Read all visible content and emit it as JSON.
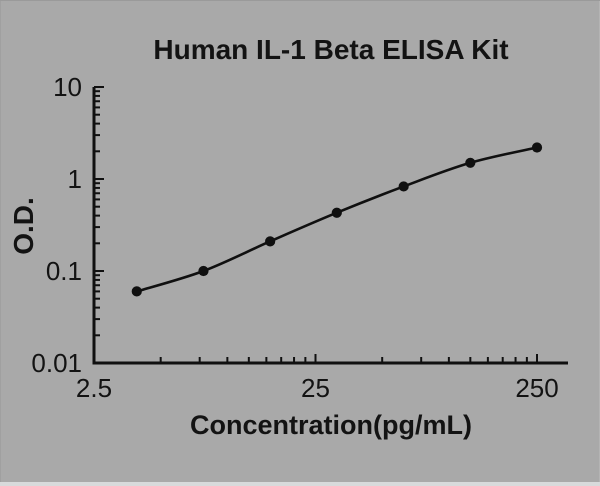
{
  "window": {
    "background_color": "#a9a9a9",
    "foreground_color": "#131313",
    "bottom_strip_color": "#d8dadb"
  },
  "chart_data": {
    "type": "scatter",
    "title": "Human IL-1 Beta ELISA Kit",
    "xlabel": "Concentration(pg/mL)",
    "ylabel": "O.D.",
    "x": [
      3.9,
      7.8,
      15.6,
      31.2,
      62.5,
      125,
      250
    ],
    "y": [
      0.06,
      0.1,
      0.21,
      0.43,
      0.83,
      1.5,
      2.2
    ],
    "xscale": "log",
    "yscale": "log",
    "xlim": [
      2.5,
      345
    ],
    "ylim": [
      0.01,
      10
    ],
    "x_ticks": [
      2.5,
      25,
      250
    ],
    "x_tick_labels": [
      "2.5",
      "25",
      "250"
    ],
    "y_ticks": [
      0.01,
      0.1,
      1,
      10
    ],
    "y_tick_labels": [
      "0.01",
      "0.1",
      "1",
      "10"
    ],
    "grid": false,
    "legend": null,
    "line_color": "#101010",
    "marker_color": "#101010",
    "marker_shape": "circle"
  }
}
